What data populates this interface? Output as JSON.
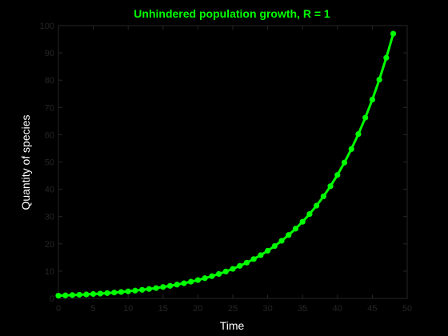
{
  "chart_data": {
    "type": "line",
    "title": "Unhindered population growth, R = 1",
    "xlabel": "Time",
    "ylabel": "Quantity of species",
    "xlim": [
      0,
      50
    ],
    "ylim": [
      0,
      100
    ],
    "xticks": [
      "0",
      "5",
      "10",
      "15",
      "20",
      "25",
      "30",
      "35",
      "40",
      "45",
      "50"
    ],
    "yticks": [
      "0",
      "10",
      "20",
      "30",
      "40",
      "50",
      "60",
      "70",
      "80",
      "90",
      "100"
    ],
    "grid": false,
    "legend": "none",
    "series": [
      {
        "x": [
          0,
          1,
          2,
          3,
          4,
          5,
          6,
          7,
          8,
          9,
          10,
          11,
          12,
          13,
          14,
          15,
          16,
          17,
          18,
          19,
          20,
          21,
          22,
          23,
          24,
          25,
          26,
          27,
          28,
          29,
          30,
          31,
          32,
          33,
          34,
          35,
          36,
          37,
          38,
          39,
          40,
          41,
          42,
          43,
          44,
          45,
          46,
          47,
          48
        ],
        "values": [
          1,
          1.1,
          1.21,
          1.33,
          1.46,
          1.61,
          1.77,
          1.95,
          2.14,
          2.36,
          2.59,
          2.85,
          3.14,
          3.45,
          3.8,
          4.18,
          4.59,
          5.05,
          5.56,
          6.12,
          6.73,
          7.4,
          8.14,
          8.95,
          9.85,
          10.83,
          11.92,
          13.11,
          14.42,
          15.86,
          17.45,
          19.19,
          21.11,
          23.23,
          25.55,
          28.1,
          30.91,
          34,
          37.4,
          41.14,
          45.26,
          49.79,
          54.76,
          60.24,
          66.26,
          72.89,
          80.18,
          88.2,
          97.02
        ]
      }
    ],
    "colors": {
      "series": "#00ff00",
      "title": "#00ff00",
      "tick_text": "#262626",
      "axis_label": "#ffffff",
      "background": "#000000"
    }
  }
}
